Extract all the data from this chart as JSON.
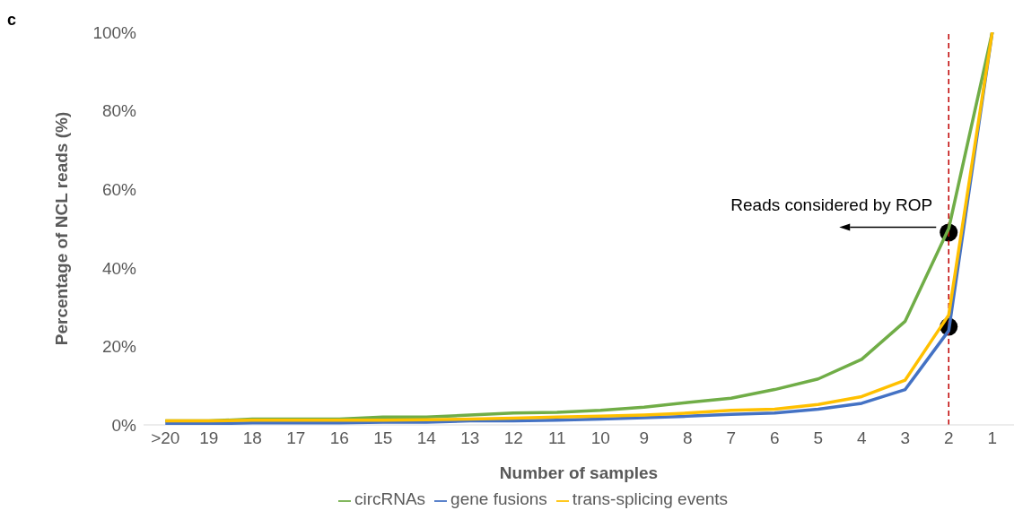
{
  "chart_data": {
    "type": "line",
    "xlabel": "Number of samples",
    "ylabel": "Percentage of NCL reads (%)",
    "categories": [
      ">20",
      "19",
      "18",
      "17",
      "16",
      "15",
      "14",
      "13",
      "12",
      "11",
      "10",
      "9",
      "8",
      "7",
      "6",
      "5",
      "4",
      "3",
      "2",
      "1"
    ],
    "series": [
      {
        "name": "circRNAs",
        "color": "#70ad47",
        "values": [
          1,
          1,
          1.5,
          1.5,
          1.5,
          2,
          2,
          2.5,
          3,
          3.2,
          3.7,
          4.5,
          5.7,
          6.8,
          9,
          11.7,
          16.7,
          26.4,
          50,
          100
        ]
      },
      {
        "name": "gene fusions",
        "color": "#4472c4",
        "values": [
          0.3,
          0.3,
          0.5,
          0.5,
          0.5,
          0.7,
          0.7,
          1,
          1,
          1.2,
          1.5,
          1.8,
          2.2,
          2.7,
          3,
          4,
          5.5,
          9,
          24,
          100
        ]
      },
      {
        "name": "trans-splicing events",
        "color": "#ffc000",
        "values": [
          1,
          1,
          1.2,
          1.2,
          1.2,
          1.2,
          1.3,
          1.5,
          1.7,
          2,
          2.2,
          2.5,
          3,
          3.7,
          4,
          5.2,
          7.2,
          11.4,
          28,
          100
        ]
      },
      {
        "type": "scatter",
        "color": "#000000",
        "marker": "circle",
        "x": [
          "2",
          "2"
        ],
        "values": [
          49,
          25
        ]
      }
    ],
    "ylim": [
      0,
      100
    ],
    "yticks": [
      {
        "value": 0,
        "label": "0%"
      },
      {
        "value": 20,
        "label": "20%"
      },
      {
        "value": 40,
        "label": "40%"
      },
      {
        "value": 60,
        "label": "60%"
      },
      {
        "value": 80,
        "label": "80%"
      },
      {
        "value": 100,
        "label": "100%"
      }
    ],
    "grid": false,
    "legend": "bottom",
    "marker": "none",
    "ref_lines": [
      {
        "axis": "x",
        "value": "2",
        "color": "#c00000",
        "line_style": "dashed"
      }
    ],
    "annotations": [
      "c",
      {
        "text": "Reads considered by ROP",
        "x": "2",
        "y": 49
      }
    ]
  }
}
